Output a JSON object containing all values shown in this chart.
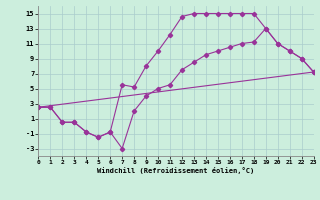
{
  "xlabel": "Windchill (Refroidissement éolien,°C)",
  "bg_color": "#cceedd",
  "line_color": "#993399",
  "xlim": [
    0,
    23
  ],
  "ylim": [
    -4,
    16
  ],
  "xticks": [
    0,
    1,
    2,
    3,
    4,
    5,
    6,
    7,
    8,
    9,
    10,
    11,
    12,
    13,
    14,
    15,
    16,
    17,
    18,
    19,
    20,
    21,
    22,
    23
  ],
  "yticks": [
    -3,
    -1,
    1,
    3,
    5,
    7,
    9,
    11,
    13,
    15
  ],
  "line1_x": [
    0,
    1,
    2,
    3,
    4,
    5,
    6,
    7,
    8,
    9,
    10,
    11,
    12,
    13,
    14,
    15,
    16,
    17,
    18,
    19,
    20,
    21,
    22,
    23
  ],
  "line1_y": [
    2.5,
    2.5,
    0.5,
    0.5,
    -0.8,
    -1.5,
    -0.8,
    5.5,
    5.2,
    8.0,
    10.0,
    12.2,
    14.6,
    15.0,
    15.0,
    15.0,
    15.0,
    15.0,
    15.0,
    13.0,
    11.0,
    10.0,
    9.0,
    7.2
  ],
  "line2_x": [
    0,
    1,
    2,
    3,
    4,
    5,
    6,
    7,
    8,
    9,
    10,
    11,
    12,
    13,
    14,
    15,
    16,
    17,
    18,
    19,
    20,
    21,
    22,
    23
  ],
  "line2_y": [
    2.5,
    2.5,
    0.5,
    0.5,
    -0.8,
    -1.5,
    -0.8,
    -3.0,
    2.0,
    4.0,
    5.0,
    5.5,
    7.5,
    8.5,
    9.5,
    10.0,
    10.5,
    11.0,
    11.2,
    13.0,
    11.0,
    10.0,
    9.0,
    7.2
  ],
  "line3_x": [
    0,
    23
  ],
  "line3_y": [
    2.5,
    7.2
  ],
  "grid_color": "#aacccc",
  "spine_color": "#888888"
}
